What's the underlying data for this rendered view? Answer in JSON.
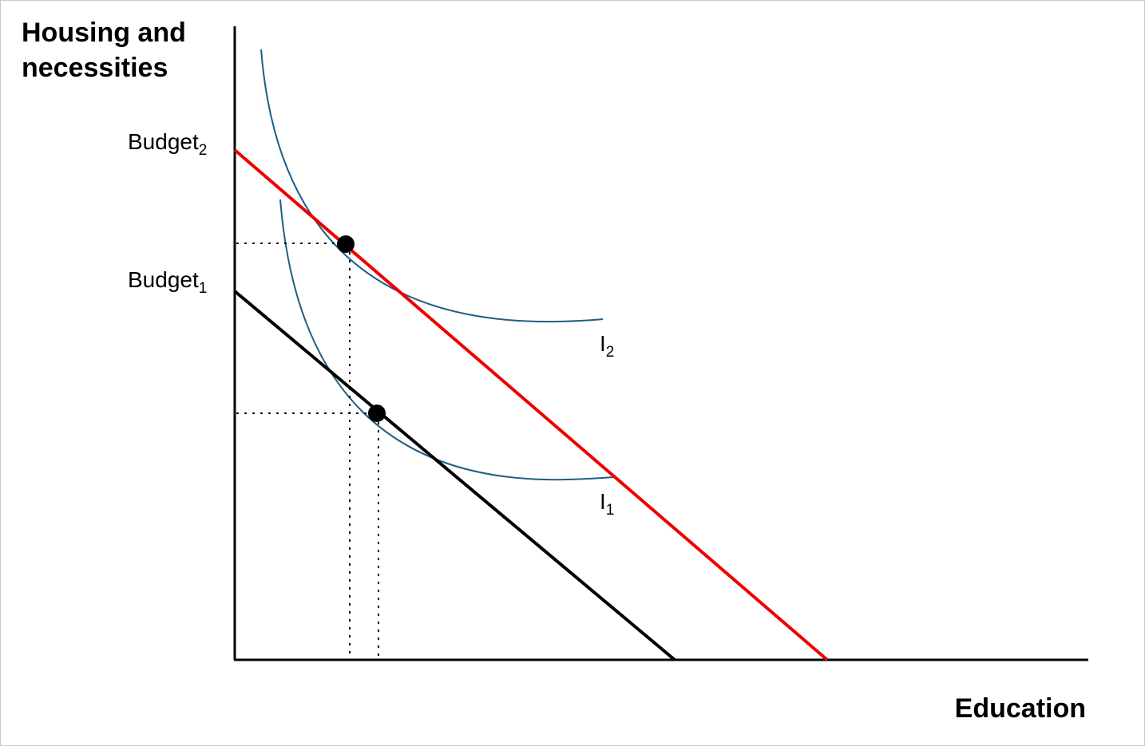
{
  "axes": {
    "y_label": "Housing and necessities",
    "x_label": "Education"
  },
  "budget_labels": [
    {
      "id": "budget2",
      "text": "Budget",
      "subscript": "2"
    },
    {
      "id": "budget1",
      "text": "Budget",
      "subscript": "1"
    }
  ],
  "curve_labels": [
    {
      "id": "i2",
      "text": "I",
      "subscript": "2"
    },
    {
      "id": "i1",
      "text": "I",
      "subscript": "1"
    }
  ],
  "colors": {
    "budget_line_1": "#000000",
    "budget_line_2": "#ee0000",
    "indifference_curves": "#1f5f86",
    "axes": "#000000",
    "equilibrium_points": "#000000"
  }
}
